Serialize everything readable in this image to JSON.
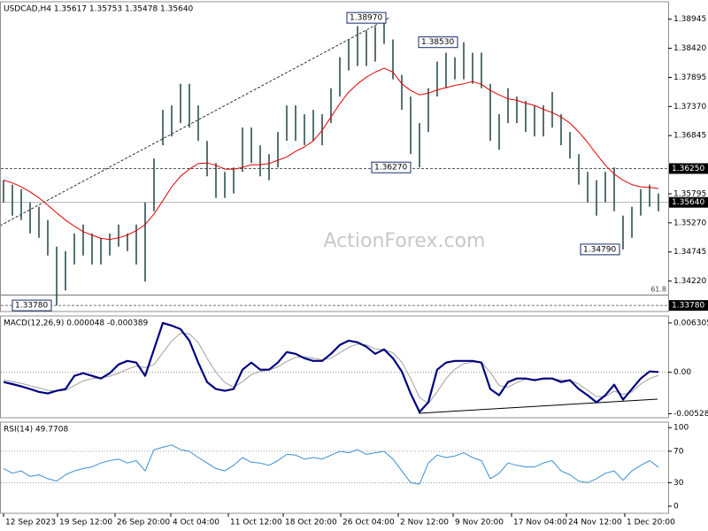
{
  "watermark": "ActionForex.com",
  "chart_data": [
    {
      "type": "ohlc",
      "title": "USDCAD,H4 1.35617 1.35753 1.35478 1.35640",
      "color": "#2f4f4f",
      "high": [
        1.3604,
        1.3596,
        1.3588,
        1.3564,
        1.3556,
        1.3532,
        1.3484,
        1.3476,
        1.3508,
        1.3524,
        1.3508,
        1.35,
        1.3508,
        1.3524,
        1.3508,
        1.3524,
        1.3564,
        1.3643,
        1.3731,
        1.3739,
        1.3778,
        1.3778,
        1.3739,
        1.3675,
        1.3635,
        1.3619,
        1.3627,
        1.3699,
        1.3699,
        1.3667,
        1.3651,
        1.3691,
        1.3739,
        1.3739,
        1.3723,
        1.3731,
        1.3723,
        1.377,
        1.3826,
        1.3858,
        1.3882,
        1.3874,
        1.3882,
        1.3897,
        1.3858,
        1.3794,
        1.3755,
        1.3707,
        1.377,
        1.3818,
        1.3834,
        1.3826,
        1.3853,
        1.3834,
        1.3834,
        1.3778,
        1.3723,
        1.377,
        1.3755,
        1.3747,
        1.3739,
        1.3739,
        1.3763,
        1.3723,
        1.3691,
        1.3651,
        1.3619,
        1.3604,
        1.3619,
        1.3627,
        1.354,
        1.3556,
        1.3588,
        1.3596,
        1.358
      ],
      "low": [
        1.3564,
        1.354,
        1.3532,
        1.3508,
        1.35,
        1.3468,
        1.3378,
        1.3405,
        1.3452,
        1.3468,
        1.3452,
        1.3452,
        1.3468,
        1.3484,
        1.3476,
        1.3452,
        1.3421,
        1.3548,
        1.3667,
        1.3683,
        1.3707,
        1.3699,
        1.3675,
        1.3611,
        1.3572,
        1.3572,
        1.358,
        1.3619,
        1.3635,
        1.3611,
        1.3604,
        1.3627,
        1.3675,
        1.3675,
        1.3667,
        1.3675,
        1.3667,
        1.3707,
        1.3755,
        1.3802,
        1.381,
        1.381,
        1.3818,
        1.385,
        1.3786,
        1.3731,
        1.3651,
        1.3627,
        1.3691,
        1.3755,
        1.377,
        1.3786,
        1.3786,
        1.3778,
        1.377,
        1.3675,
        1.3659,
        1.3707,
        1.3707,
        1.3691,
        1.3683,
        1.3683,
        1.3699,
        1.3667,
        1.3643,
        1.3596,
        1.3564,
        1.354,
        1.3564,
        1.3548,
        1.3479,
        1.35,
        1.354,
        1.3556,
        1.3548
      ],
      "ma": {
        "color": "#e00000",
        "values": [
          1.3604,
          1.3599,
          1.3592,
          1.3583,
          1.3572,
          1.3559,
          1.3545,
          1.3532,
          1.3521,
          1.3511,
          1.3505,
          1.3499,
          1.3497,
          1.35,
          1.3505,
          1.3513,
          1.3524,
          1.3543,
          1.3567,
          1.3592,
          1.3611,
          1.3624,
          1.3634,
          1.3635,
          1.3631,
          1.3624,
          1.3624,
          1.3627,
          1.3632,
          1.3632,
          1.3634,
          1.364,
          1.3646,
          1.3656,
          1.3664,
          1.3675,
          1.3694,
          1.3718,
          1.3742,
          1.3763,
          1.3778,
          1.379,
          1.3799,
          1.3806,
          1.3799,
          1.3778,
          1.3766,
          1.3758,
          1.3761,
          1.3767,
          1.3771,
          1.3775,
          1.3778,
          1.3782,
          1.3777,
          1.3766,
          1.3758,
          1.3751,
          1.3748,
          1.3743,
          1.3739,
          1.3732,
          1.3726,
          1.3718,
          1.3707,
          1.3691,
          1.3672,
          1.3651,
          1.3631,
          1.3615,
          1.3604,
          1.3596,
          1.3592,
          1.3591,
          1.3589
        ]
      },
      "xlim": [
        -0.4,
        75.1
      ],
      "ylim": [
        1.3367,
        1.3926
      ],
      "yticks": [
        1.38945,
        {
          "value": 1.3842,
          "label": "1.38420"
        },
        1.37895,
        {
          "value": 1.3737,
          "label": "1.37370"
        },
        1.36845,
        1.35795,
        {
          "value": 1.3527,
          "label": "1.35270"
        },
        1.34745,
        {
          "value": 1.3422,
          "label": "1.34220"
        }
      ],
      "levels": [
        {
          "value": 1.3625,
          "label": "1.36250",
          "style": "dashed"
        },
        {
          "value": 1.3564,
          "label": "1.35640",
          "style": "solid"
        },
        {
          "value": 1.3378,
          "label": "1.33780",
          "style": "dashed"
        }
      ],
      "fib": {
        "value": 1.3397,
        "label": "61.8"
      },
      "annotations": [
        {
          "value": 1.3897,
          "label": "1.38970"
        },
        {
          "value": 1.3853,
          "label": "1.38530"
        },
        {
          "value": 1.3627,
          "label": "1.36270"
        },
        {
          "value": 1.3479,
          "label": "1.34790"
        },
        {
          "value": 1.3378,
          "label": "1.33780"
        }
      ]
    },
    {
      "type": "macd",
      "title": "MACD(12,26,9) 0.000048 -0.000389",
      "macd": {
        "color": "#00007f",
        "values": [
          -0.00124,
          -0.0015,
          -0.0018,
          -0.00214,
          -0.0025,
          -0.0027,
          -0.00236,
          -0.00214,
          -0.00045,
          -0.00011,
          -0.00045,
          -0.00079,
          -0.00011,
          0.00101,
          0.00146,
          0.00124,
          -0.00045,
          0.00293,
          0.00631,
          0.00597,
          0.00552,
          0.00405,
          0.00124,
          -0.00124,
          -0.00214,
          -0.00236,
          -0.00214,
          0.00034,
          0.00124,
          0.00034,
          0.00034,
          0.00124,
          0.00259,
          0.00236,
          0.0018,
          0.00146,
          0.00146,
          0.00236,
          0.00349,
          0.00405,
          0.00383,
          0.00327,
          0.00236,
          0.00293,
          0.0018,
          0.00011,
          -0.0027,
          -0.00507,
          -0.00383,
          0.00034,
          0.00124,
          0.00146,
          0.00146,
          0.00146,
          0.00124,
          -0.00214,
          -0.00293,
          -0.00124,
          -0.00079,
          -0.00079,
          -0.00101,
          -0.00079,
          -0.00079,
          -0.00124,
          -0.00101,
          -0.00214,
          -0.00293,
          -0.00383,
          -0.00293,
          -0.00158,
          -0.00349,
          -0.00214,
          -0.00079,
          0.00011,
          4.8e-05
        ]
      },
      "signal": {
        "color": "#a0a0a0",
        "values": [
          -0.001,
          -0.0012,
          -0.0014,
          -0.0017,
          -0.002,
          -0.0023,
          -0.0024,
          -0.0023,
          -0.0017,
          -0.0011,
          -0.0008,
          -0.0007,
          -0.0005,
          -0.0001,
          0.0004,
          0.0008,
          0.0006,
          0.001,
          0.0025,
          0.004,
          0.005,
          0.0049,
          0.0038,
          0.0018,
          0,
          -0.0013,
          -0.0019,
          -0.0012,
          -0.0003,
          0.0001,
          0.0003,
          0.0007,
          0.0014,
          0.0019,
          0.002,
          0.0018,
          0.0016,
          0.0018,
          0.0025,
          0.0032,
          0.0036,
          0.0035,
          0.003,
          0.0029,
          0.0025,
          0.0013,
          -0.0008,
          -0.0032,
          -0.004,
          -0.0025,
          -0.0008,
          0.0004,
          0.0011,
          0.0013,
          0.0013,
          0,
          -0.0017,
          -0.0019,
          -0.0013,
          -0.0009,
          -0.0009,
          -0.0009,
          -0.0008,
          -0.001,
          -0.001,
          -0.0015,
          -0.0023,
          -0.0031,
          -0.0031,
          -0.0024,
          -0.0028,
          -0.0025,
          -0.0015,
          -0.0008,
          -0.000389
        ]
      },
      "xlim": [
        -0.4,
        75.1
      ],
      "ylim": [
        -0.0058,
        0.0072
      ],
      "yticks": [
        0.006305,
        {
          "value": 0,
          "label": "0.00"
        },
        -0.005283
      ],
      "levels": [
        0
      ]
    },
    {
      "type": "line",
      "title": "RSI(14) 49.7708",
      "color": "#3a8fd0",
      "values": [
        48,
        42,
        45,
        38,
        40,
        35,
        32,
        40,
        45,
        48,
        50,
        55,
        58,
        60,
        55,
        58,
        45,
        72,
        75,
        78,
        72,
        70,
        62,
        55,
        48,
        45,
        52,
        62,
        56,
        55,
        52,
        58,
        66,
        65,
        60,
        62,
        60,
        65,
        70,
        68,
        72,
        66,
        68,
        70,
        60,
        45,
        30,
        28,
        55,
        65,
        62,
        64,
        68,
        62,
        58,
        35,
        42,
        55,
        52,
        50,
        50,
        55,
        58,
        45,
        40,
        32,
        30,
        35,
        42,
        45,
        33,
        45,
        52,
        58,
        49.7708
      ],
      "xlim": [
        -0.4,
        75.1
      ],
      "ylim": [
        -9,
        107
      ],
      "yticks": [
        100,
        70,
        30,
        0
      ],
      "levels": [
        70,
        30
      ],
      "xticks": [
        {
          "value": 0,
          "label": "12 Sep 2023"
        },
        {
          "value": 6.1,
          "label": "19 Sep 12:00"
        },
        {
          "value": 12.6,
          "label": "26 Sep 20:00"
        },
        {
          "value": 18.9,
          "label": "4 Oct 04:00"
        },
        {
          "value": 25.4,
          "label": "11 Oct 12:00"
        },
        {
          "value": 31.6,
          "label": "18 Oct 20:00"
        },
        {
          "value": 38.1,
          "label": "26 Oct 04:00"
        },
        {
          "value": 44.6,
          "label": "2 Nov 12:00"
        },
        {
          "value": 50.8,
          "label": "9 Nov 20:00"
        },
        {
          "value": 57.4,
          "label": "17 Nov 04:00"
        },
        {
          "value": 63.6,
          "label": "24 Nov 12:00"
        },
        {
          "value": 70.2,
          "label": "1 Dec 20:00"
        }
      ]
    }
  ]
}
